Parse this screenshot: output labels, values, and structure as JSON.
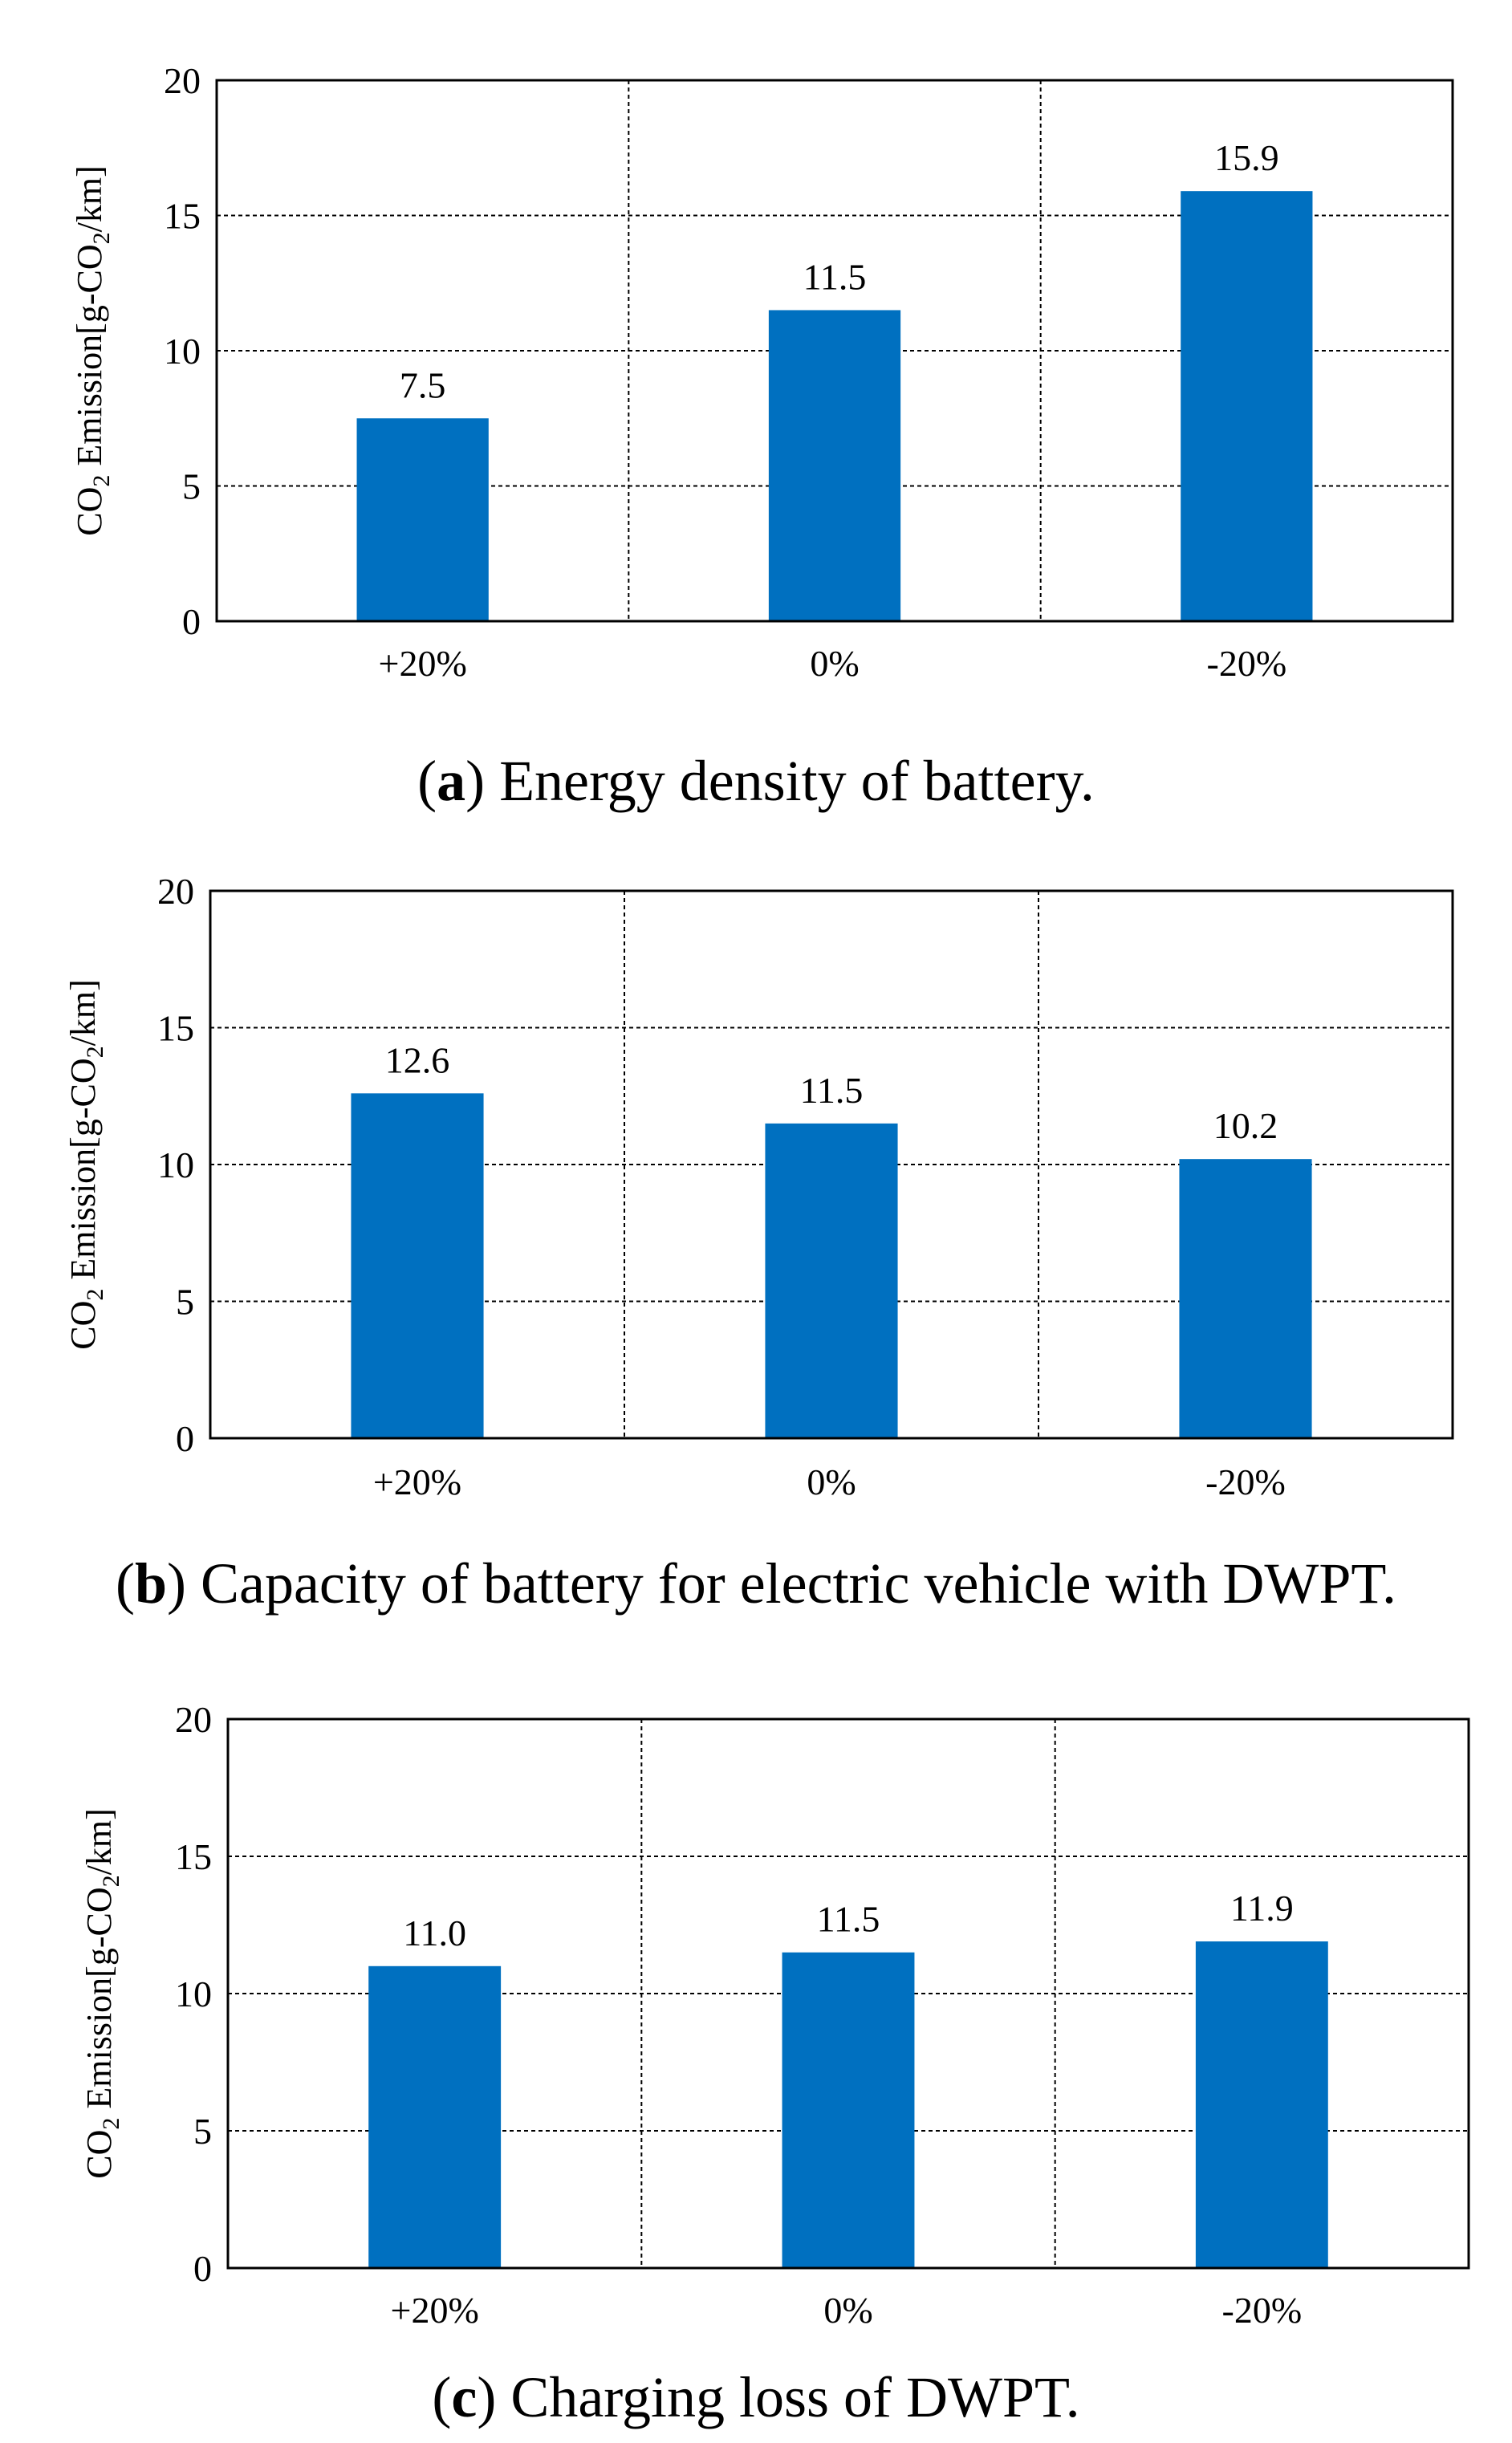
{
  "chart_data": [
    {
      "type": "bar",
      "panel": "a",
      "caption": "Energy density of battery.",
      "categories": [
        "+20%",
        "0%",
        "-20%"
      ],
      "values": [
        7.5,
        11.5,
        15.9
      ],
      "data_labels": [
        "7.5",
        "11.5",
        "15.9"
      ],
      "ylabel": {
        "prefix": "CO",
        "sub": "2",
        "mid": " Emission[g-CO",
        "sub2": "2",
        "suffix": "/km]"
      },
      "ylim": [
        0,
        20
      ],
      "yticks": [
        "0",
        "5",
        "10",
        "15",
        "20"
      ],
      "grid": true,
      "bar_color": "#0070c0"
    },
    {
      "type": "bar",
      "panel": "b",
      "caption": "Capacity of battery for electric vehicle with DWPT.",
      "categories": [
        "+20%",
        "0%",
        "-20%"
      ],
      "values": [
        12.6,
        11.5,
        10.2
      ],
      "data_labels": [
        "12.6",
        "11.5",
        "10.2"
      ],
      "ylabel": {
        "prefix": "CO",
        "sub": "2",
        "mid": " Emission[g-CO",
        "sub2": "2",
        "suffix": "/km]"
      },
      "ylim": [
        0,
        20
      ],
      "yticks": [
        "0",
        "5",
        "10",
        "15",
        "20"
      ],
      "grid": true,
      "bar_color": "#0070c0"
    },
    {
      "type": "bar",
      "panel": "c",
      "caption": "Charging loss of DWPT.",
      "categories": [
        "+20%",
        "0%",
        "-20%"
      ],
      "values": [
        11.0,
        11.5,
        11.9
      ],
      "data_labels": [
        "11.0",
        "11.5",
        "11.9"
      ],
      "ylabel": {
        "prefix": "CO",
        "sub": "2",
        "mid": " Emission[g-CO",
        "sub2": "2",
        "suffix": "/km]"
      },
      "ylim": [
        0,
        20
      ],
      "yticks": [
        "0",
        "5",
        "10",
        "15",
        "20"
      ],
      "grid": true,
      "bar_color": "#0070c0"
    }
  ]
}
